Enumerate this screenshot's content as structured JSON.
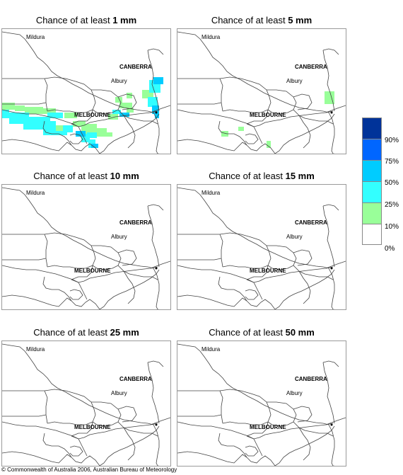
{
  "panels": [
    {
      "prefix": "Chance of at least ",
      "amount": "1 mm"
    },
    {
      "prefix": "Chance of at least ",
      "amount": "5 mm"
    },
    {
      "prefix": "Chance of at least ",
      "amount": "10 mm"
    },
    {
      "prefix": "Chance of at least ",
      "amount": "15 mm"
    },
    {
      "prefix": "Chance of at least ",
      "amount": "25 mm"
    },
    {
      "prefix": "Chance of at least ",
      "amount": "50 mm"
    }
  ],
  "places": {
    "mildura": "Mildura",
    "canberra": "CANBERRA",
    "albury": "Albury",
    "melbourne": "MELBOURNE"
  },
  "legend": {
    "colors": [
      "#003399",
      "#0066ff",
      "#00ccff",
      "#33ffff",
      "#99ff99",
      "#ffffff"
    ],
    "labels": [
      "90%",
      "75%",
      "50%",
      "25%",
      "10%",
      "0%"
    ]
  },
  "footer": "© Commonwealth of Australia 2006, Australian Bureau of Meteorology"
}
